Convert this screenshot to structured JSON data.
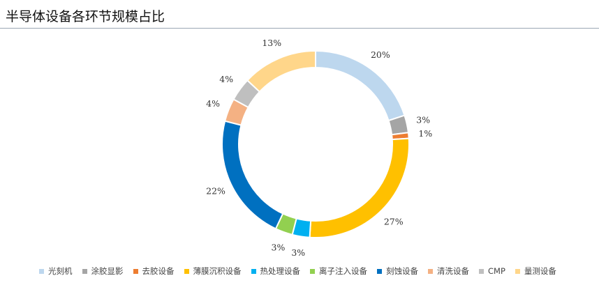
{
  "header": {
    "title": "半导体设备各环节规模占比"
  },
  "chart_data": {
    "type": "pie",
    "donut": true,
    "title": "半导体设备各环节规模占比",
    "categories": [
      "光刻机",
      "涂胶显影",
      "去胶设备",
      "薄膜沉积设备",
      "热处理设备",
      "离子注入设备",
      "刻蚀设备",
      "清洗设备",
      "CMP",
      "量测设备"
    ],
    "values": [
      20,
      3,
      1,
      27,
      3,
      3,
      22,
      4,
      4,
      13
    ],
    "value_labels": [
      "20%",
      "3%",
      "1%",
      "27%",
      "3%",
      "3%",
      "22%",
      "4%",
      "4%",
      "13%"
    ],
    "colors": [
      "#bdd7ee",
      "#a5a5a5",
      "#ed7d31",
      "#ffc000",
      "#00b0f0",
      "#92d050",
      "#0070c0",
      "#f4b183",
      "#bfbfbf",
      "#ffd68a"
    ],
    "legend_position": "bottom"
  }
}
